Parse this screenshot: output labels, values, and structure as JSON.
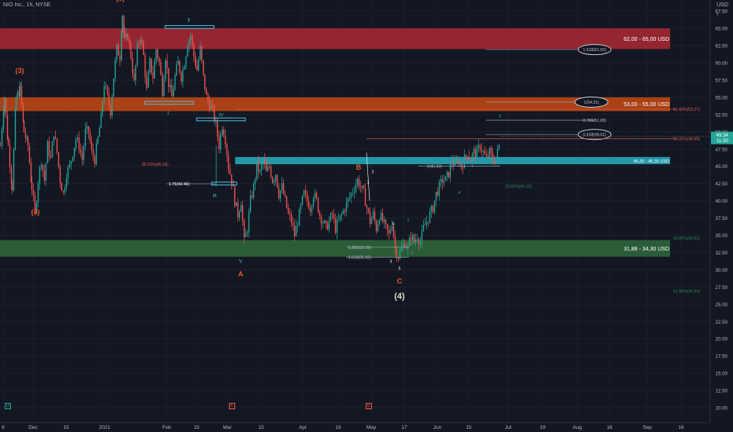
{
  "header": {
    "title": "NIO Inc., 1h, NYSE",
    "currency": "USD"
  },
  "icons": [
    {
      "name": "scroll-up-icon",
      "glyph": "↑"
    },
    {
      "name": "dividends-icon",
      "glyph": "D"
    },
    {
      "name": "earnings-icon-1",
      "glyph": "E"
    },
    {
      "name": "earnings-icon-2",
      "glyph": "E"
    }
  ],
  "colors": {
    "background": "#131722",
    "up": "#26a69a",
    "down": "#ef5350",
    "red_zone": "#b22833",
    "orange_zone": "#cc4a12",
    "teal_zone": "#26a6b8",
    "green_zone": "#2e6b3c",
    "wave_orange": "#e8552d",
    "wave_light": "#d7e0c0",
    "wave_teal": "#4fc3d9",
    "fib": "#b9c0c8"
  },
  "chart_data": {
    "type": "candlestick",
    "title": "NIO Inc., 1h, NYSE",
    "xlabel": "",
    "ylabel": "",
    "ylim": [
      7.5,
      80
    ],
    "y_ticks": [
      "10.00",
      "12.50",
      "15.00",
      "17.50",
      "20.00",
      "22.50",
      "25.00",
      "27.50",
      "30.00",
      "32.50",
      "35.00",
      "37.50",
      "40.00",
      "42.50",
      "45.00",
      "47.50",
      "50.00",
      "52.50",
      "55.00",
      "57.50",
      "60.00",
      "62.50",
      "65.00",
      "67.50",
      "70.00",
      "72.50",
      "75.00",
      "77.50"
    ],
    "x_ticks": [
      "6",
      "Dec",
      "15",
      "2021",
      "Feb",
      "15",
      "Mar",
      "15",
      "Apr",
      "19",
      "May",
      "17",
      "Jun",
      "15",
      "Jul",
      "19",
      "Aug",
      "16",
      "Sep",
      "16"
    ],
    "last_price": "49.34",
    "countdown": "11:30",
    "price_path": [
      [
        0,
        48
      ],
      [
        5,
        55
      ],
      [
        10,
        48
      ],
      [
        15,
        42
      ],
      [
        20,
        55
      ],
      [
        25,
        56
      ],
      [
        27,
        54
      ],
      [
        30,
        50
      ],
      [
        35,
        48
      ],
      [
        40,
        42
      ],
      [
        44,
        38
      ],
      [
        48,
        43
      ],
      [
        52,
        46
      ],
      [
        56,
        43
      ],
      [
        60,
        48
      ],
      [
        64,
        46
      ],
      [
        68,
        50
      ],
      [
        72,
        47
      ],
      [
        76,
        43
      ],
      [
        80,
        41
      ],
      [
        84,
        44
      ],
      [
        88,
        45
      ],
      [
        92,
        47
      ],
      [
        96,
        49
      ],
      [
        100,
        48
      ],
      [
        104,
        46
      ],
      [
        108,
        50
      ],
      [
        112,
        50
      ],
      [
        116,
        47
      ],
      [
        120,
        46
      ],
      [
        124,
        49
      ],
      [
        128,
        52
      ],
      [
        132,
        57
      ],
      [
        136,
        55
      ],
      [
        140,
        53
      ],
      [
        144,
        58
      ],
      [
        148,
        62
      ],
      [
        152,
        61
      ],
      [
        155,
        67
      ],
      [
        158,
        63
      ],
      [
        162,
        64
      ],
      [
        166,
        61
      ],
      [
        170,
        57
      ],
      [
        174,
        62
      ],
      [
        178,
        64
      ],
      [
        182,
        61
      ],
      [
        186,
        56
      ],
      [
        190,
        60
      ],
      [
        194,
        58
      ],
      [
        198,
        62
      ],
      [
        202,
        60
      ],
      [
        206,
        56
      ],
      [
        210,
        61
      ],
      [
        214,
        57
      ],
      [
        218,
        55
      ],
      [
        222,
        58
      ],
      [
        226,
        60
      ],
      [
        230,
        58
      ],
      [
        234,
        60
      ],
      [
        238,
        63
      ],
      [
        242,
        64
      ],
      [
        246,
        61
      ],
      [
        250,
        59
      ],
      [
        254,
        62
      ],
      [
        258,
        58
      ],
      [
        262,
        55
      ],
      [
        266,
        54
      ],
      [
        270,
        53
      ],
      [
        274,
        51
      ],
      [
        278,
        48
      ],
      [
        282,
        51
      ],
      [
        286,
        49
      ],
      [
        290,
        45
      ],
      [
        294,
        43
      ],
      [
        298,
        40
      ],
      [
        302,
        38
      ],
      [
        306,
        40
      ],
      [
        310,
        34
      ],
      [
        314,
        36
      ],
      [
        318,
        40
      ],
      [
        322,
        42
      ],
      [
        326,
        45
      ],
      [
        330,
        44
      ],
      [
        334,
        46
      ],
      [
        338,
        44
      ],
      [
        342,
        45
      ],
      [
        346,
        43
      ],
      [
        350,
        44
      ],
      [
        354,
        41
      ],
      [
        358,
        42
      ],
      [
        362,
        40
      ],
      [
        366,
        38
      ],
      [
        370,
        37
      ],
      [
        374,
        35
      ],
      [
        378,
        37
      ],
      [
        382,
        39
      ],
      [
        386,
        41
      ],
      [
        390,
        40
      ],
      [
        394,
        39
      ],
      [
        398,
        41
      ],
      [
        402,
        40
      ],
      [
        406,
        38
      ],
      [
        410,
        37
      ],
      [
        414,
        36
      ],
      [
        418,
        37
      ],
      [
        422,
        38
      ],
      [
        426,
        36
      ],
      [
        430,
        37
      ],
      [
        434,
        38
      ],
      [
        438,
        39
      ],
      [
        442,
        40
      ],
      [
        446,
        41
      ],
      [
        450,
        42
      ],
      [
        454,
        43
      ],
      [
        458,
        42
      ],
      [
        462,
        41
      ],
      [
        466,
        39
      ],
      [
        470,
        37
      ],
      [
        474,
        38
      ],
      [
        478,
        36
      ],
      [
        482,
        38
      ],
      [
        486,
        37
      ],
      [
        490,
        36
      ],
      [
        494,
        35
      ],
      [
        498,
        37
      ],
      [
        502,
        33
      ],
      [
        506,
        32
      ],
      [
        510,
        33
      ],
      [
        514,
        34
      ],
      [
        518,
        33
      ],
      [
        522,
        35
      ],
      [
        526,
        34
      ],
      [
        530,
        35
      ],
      [
        534,
        34
      ],
      [
        538,
        36
      ],
      [
        542,
        37
      ],
      [
        546,
        38
      ],
      [
        550,
        39
      ],
      [
        554,
        41
      ],
      [
        558,
        42
      ],
      [
        562,
        43
      ],
      [
        566,
        43
      ],
      [
        570,
        44
      ],
      [
        574,
        46
      ],
      [
        578,
        45
      ],
      [
        582,
        46
      ],
      [
        586,
        45
      ],
      [
        590,
        46
      ],
      [
        594,
        47
      ],
      [
        598,
        46
      ],
      [
        602,
        47
      ],
      [
        606,
        47
      ],
      [
        610,
        48
      ],
      [
        614,
        47
      ],
      [
        618,
        46
      ],
      [
        622,
        47
      ],
      [
        626,
        46
      ],
      [
        630,
        46
      ],
      [
        634,
        48
      ],
      [
        636,
        49.34
      ]
    ],
    "zones": [
      {
        "label": "62,00 - 65,00 USD",
        "low": 62.0,
        "high": 65.0,
        "color": "#b22833"
      },
      {
        "label": "53,00 - 55,00 USD",
        "low": 53.0,
        "high": 55.0,
        "color": "#cc4a12"
      },
      {
        "label": "45,30 - 46,35 USD",
        "low": 45.3,
        "high": 46.35,
        "color": "#26a6b8"
      },
      {
        "label": "31,88 - 34,30 USD",
        "low": 31.88,
        "high": 34.3,
        "color": "#2e6b3c"
      }
    ],
    "fib_levels": [
      {
        "text": "1.618(61.92)",
        "price": 61.92,
        "boxed": true
      },
      {
        "text": "1(54.31)",
        "price": 54.31,
        "boxed": true
      },
      {
        "text": "0.786(51.68)",
        "price": 51.68,
        "boxed": false
      },
      {
        "text": "0.618(49.61)",
        "price": 49.61,
        "boxed": true
      },
      {
        "text": "61.80%(53.27)",
        "price": 53.27,
        "boxed": false
      },
      {
        "text": "50.00%(48.99)",
        "price": 48.99,
        "boxed": false
      },
      {
        "text": "38.20%(45.28)",
        "price": 45.28,
        "boxed": false
      },
      {
        "text": "1.76(42.46)",
        "price": 42.46,
        "boxed": false
      },
      {
        "text": "1(45.03)",
        "price": 45.03,
        "boxed": false
      },
      {
        "text": "1.382(33.26)",
        "price": 33.26,
        "boxed": false
      },
      {
        "text": "1.618(31.82)",
        "price": 31.82,
        "boxed": false
      },
      {
        "text": "23.60%(42.10)",
        "price": 42.1,
        "boxed": false
      },
      {
        "text": "50.00%(34.61)",
        "price": 34.61,
        "boxed": false
      },
      {
        "text": "61.80%(26.94)",
        "price": 26.94,
        "boxed": false
      }
    ],
    "wave_labels": [
      {
        "text": "(3)",
        "price": 72.5,
        "color": "#d7e0c0",
        "size": "big"
      },
      {
        "text": "(4)",
        "price": 25.8,
        "color": "#d7e0c0",
        "size": "big"
      },
      {
        "text": "(5)",
        "price": 69.0,
        "color": "#e8552d",
        "size": "mid"
      },
      {
        "text": "(3)",
        "price": 58.5,
        "color": "#e8552d",
        "size": "mid"
      },
      {
        "text": "(4)",
        "price": 38.0,
        "color": "#e8552d",
        "size": "mid"
      },
      {
        "text": "A",
        "price": 29.0,
        "color": "#e8552d",
        "size": "mid"
      },
      {
        "text": "B",
        "price": 44.5,
        "color": "#e8552d",
        "size": "mid"
      },
      {
        "text": "C",
        "price": 28.0,
        "color": "#e8552d",
        "size": "mid"
      },
      {
        "text": "II",
        "price": 66.0,
        "color": "#4fc3d9",
        "size": "small"
      },
      {
        "text": "IV",
        "price": 52.2,
        "color": "#4fc3d9",
        "size": "small"
      },
      {
        "text": "I",
        "price": 52.5,
        "color": "#4fc3d9",
        "size": "small"
      },
      {
        "text": "III",
        "price": 40.5,
        "color": "#4fc3d9",
        "size": "small"
      },
      {
        "text": "V",
        "price": 31.0,
        "color": "#4fc3d9",
        "size": "small"
      },
      {
        "text": "V",
        "price": 56.8,
        "color": "#4fc3d9",
        "size": "small"
      },
      {
        "text": "1",
        "price": 42.5,
        "color": "#ffffff",
        "size": "tiny"
      },
      {
        "text": "2",
        "price": 44.0,
        "color": "#ffffff",
        "size": "tiny"
      },
      {
        "text": "3",
        "price": 31.0,
        "color": "#ffffff",
        "size": "tiny"
      },
      {
        "text": "4",
        "price": 36.5,
        "color": "#ffffff",
        "size": "tiny"
      },
      {
        "text": "5",
        "price": 30.0,
        "color": "#ffffff",
        "size": "tiny"
      },
      {
        "text": "1",
        "price": 37.0,
        "color": "#26a69a",
        "size": "tiny"
      },
      {
        "text": "2",
        "price": 32.2,
        "color": "#26a69a",
        "size": "tiny"
      },
      {
        "text": "3",
        "price": 45.0,
        "color": "#26a69a",
        "size": "tiny"
      },
      {
        "text": "4",
        "price": 41.0,
        "color": "#26a69a",
        "size": "tiny"
      },
      {
        "text": "5",
        "price": 52.0,
        "color": "#26a69a",
        "size": "tiny"
      }
    ]
  }
}
